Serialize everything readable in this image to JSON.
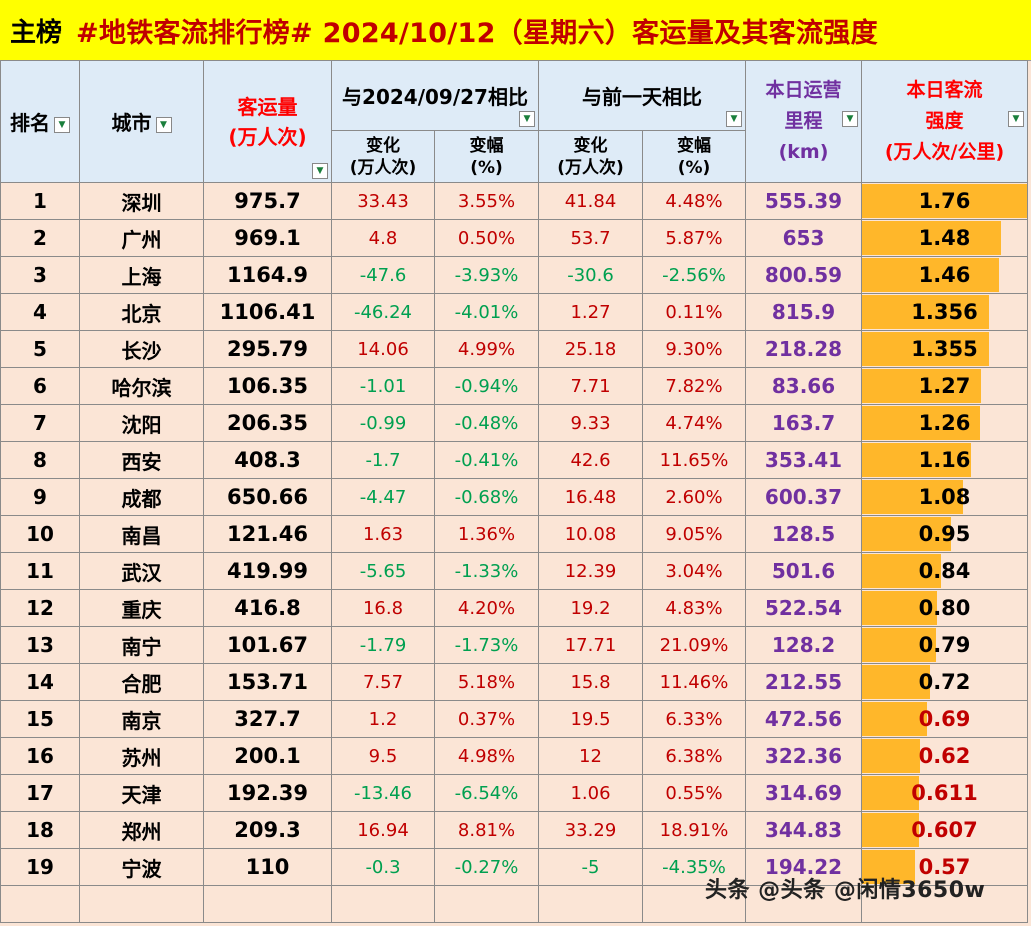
{
  "header": {
    "label": "主榜",
    "title": "#地铁客流排行榜# 2024/10/12（星期六）客运量及其客流强度"
  },
  "columns": {
    "rank": "排名",
    "city": "城市",
    "passengers": [
      "客运量",
      "(万人次)"
    ],
    "compare_date": "与2024/09/27相比",
    "compare_prev": "与前一天相比",
    "change": [
      "变化",
      "(万人次)"
    ],
    "change_pct": [
      "变幅",
      "(%)"
    ],
    "mileage": [
      "本日运营",
      "里程",
      "(km)"
    ],
    "intensity": [
      "本日客流",
      "强度",
      "(万人次/公里)"
    ]
  },
  "rows": [
    {
      "rank": "1",
      "city": "深圳",
      "passengers": "975.7",
      "c1": "33.43",
      "p1": "3.55%",
      "c2": "41.84",
      "p2": "4.48%",
      "km": "555.39",
      "intensity": "1.76"
    },
    {
      "rank": "2",
      "city": "广州",
      "passengers": "969.1",
      "c1": "4.8",
      "p1": "0.50%",
      "c2": "53.7",
      "p2": "5.87%",
      "km": "653",
      "intensity": "1.48"
    },
    {
      "rank": "3",
      "city": "上海",
      "passengers": "1164.9",
      "c1": "-47.6",
      "p1": "-3.93%",
      "c2": "-30.6",
      "p2": "-2.56%",
      "km": "800.59",
      "intensity": "1.46"
    },
    {
      "rank": "4",
      "city": "北京",
      "passengers": "1106.41",
      "c1": "-46.24",
      "p1": "-4.01%",
      "c2": "1.27",
      "p2": "0.11%",
      "km": "815.9",
      "intensity": "1.356"
    },
    {
      "rank": "5",
      "city": "长沙",
      "passengers": "295.79",
      "c1": "14.06",
      "p1": "4.99%",
      "c2": "25.18",
      "p2": "9.30%",
      "km": "218.28",
      "intensity": "1.355"
    },
    {
      "rank": "6",
      "city": "哈尔滨",
      "passengers": "106.35",
      "c1": "-1.01",
      "p1": "-0.94%",
      "c2": "7.71",
      "p2": "7.82%",
      "km": "83.66",
      "intensity": "1.27"
    },
    {
      "rank": "7",
      "city": "沈阳",
      "passengers": "206.35",
      "c1": "-0.99",
      "p1": "-0.48%",
      "c2": "9.33",
      "p2": "4.74%",
      "km": "163.7",
      "intensity": "1.26"
    },
    {
      "rank": "8",
      "city": "西安",
      "passengers": "408.3",
      "c1": "-1.7",
      "p1": "-0.41%",
      "c2": "42.6",
      "p2": "11.65%",
      "km": "353.41",
      "intensity": "1.16"
    },
    {
      "rank": "9",
      "city": "成都",
      "passengers": "650.66",
      "c1": "-4.47",
      "p1": "-0.68%",
      "c2": "16.48",
      "p2": "2.60%",
      "km": "600.37",
      "intensity": "1.08"
    },
    {
      "rank": "10",
      "city": "南昌",
      "passengers": "121.46",
      "c1": "1.63",
      "p1": "1.36%",
      "c2": "10.08",
      "p2": "9.05%",
      "km": "128.5",
      "intensity": "0.95"
    },
    {
      "rank": "11",
      "city": "武汉",
      "passengers": "419.99",
      "c1": "-5.65",
      "p1": "-1.33%",
      "c2": "12.39",
      "p2": "3.04%",
      "km": "501.6",
      "intensity": "0.84"
    },
    {
      "rank": "12",
      "city": "重庆",
      "passengers": "416.8",
      "c1": "16.8",
      "p1": "4.20%",
      "c2": "19.2",
      "p2": "4.83%",
      "km": "522.54",
      "intensity": "0.80"
    },
    {
      "rank": "13",
      "city": "南宁",
      "passengers": "101.67",
      "c1": "-1.79",
      "p1": "-1.73%",
      "c2": "17.71",
      "p2": "21.09%",
      "km": "128.2",
      "intensity": "0.79"
    },
    {
      "rank": "14",
      "city": "合肥",
      "passengers": "153.71",
      "c1": "7.57",
      "p1": "5.18%",
      "c2": "15.8",
      "p2": "11.46%",
      "km": "212.55",
      "intensity": "0.72"
    },
    {
      "rank": "15",
      "city": "南京",
      "passengers": "327.7",
      "c1": "1.2",
      "p1": "0.37%",
      "c2": "19.5",
      "p2": "6.33%",
      "km": "472.56",
      "intensity": "0.69"
    },
    {
      "rank": "16",
      "city": "苏州",
      "passengers": "200.1",
      "c1": "9.5",
      "p1": "4.98%",
      "c2": "12",
      "p2": "6.38%",
      "km": "322.36",
      "intensity": "0.62"
    },
    {
      "rank": "17",
      "city": "天津",
      "passengers": "192.39",
      "c1": "-13.46",
      "p1": "-6.54%",
      "c2": "1.06",
      "p2": "0.55%",
      "km": "314.69",
      "intensity": "0.611"
    },
    {
      "rank": "18",
      "city": "郑州",
      "passengers": "209.3",
      "c1": "16.94",
      "p1": "8.81%",
      "c2": "33.29",
      "p2": "18.91%",
      "km": "344.83",
      "intensity": "0.607"
    },
    {
      "rank": "19",
      "city": "宁波",
      "passengers": "110",
      "c1": "-0.3",
      "p1": "-0.27%",
      "c2": "-5",
      "p2": "-4.35%",
      "km": "194.22",
      "intensity": "0.57"
    }
  ],
  "watermark": "头条 @头条 @闲情3650w",
  "colors": {
    "title_bg": "#ffff00",
    "title_text": "#c00000",
    "header_bg": "#deebf7",
    "body_bg": "#fbe5d6",
    "bar": "#ffb72a",
    "positive": "#c00000",
    "negative": "#00a050",
    "mileage": "#7030a0"
  }
}
